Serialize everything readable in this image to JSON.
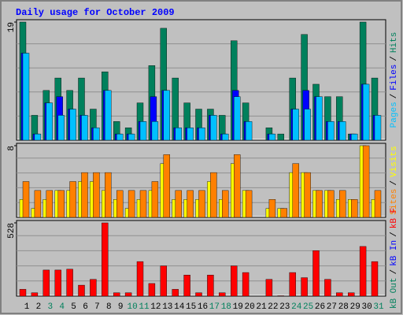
{
  "chart_data": [
    {
      "type": "bar",
      "title": "Daily usage for October 2009",
      "separator": "/",
      "ylim": [
        0,
        19
      ],
      "yticks": [
        19
      ],
      "series": [
        {
          "name": "Hits",
          "color": "#00805c",
          "values": [
            19,
            4,
            8,
            10,
            8,
            10,
            5,
            11,
            3,
            2,
            6,
            12,
            18,
            10,
            6,
            5,
            5,
            4,
            16,
            6,
            0,
            2,
            1,
            10,
            17,
            9,
            7,
            7,
            1,
            19,
            10
          ]
        },
        {
          "name": "Files",
          "color": "#0000ff",
          "values": [
            14,
            1,
            6,
            7,
            5,
            4,
            2,
            8,
            1,
            1,
            3,
            7,
            8,
            2,
            2,
            2,
            4,
            1,
            8,
            3,
            0,
            1,
            0,
            5,
            8,
            7,
            3,
            3,
            1,
            9,
            4
          ]
        },
        {
          "name": "Pages",
          "color": "#00c0ff",
          "values": [
            14,
            1,
            6,
            4,
            5,
            4,
            2,
            8,
            1,
            1,
            3,
            3,
            8,
            2,
            2,
            2,
            4,
            1,
            7,
            3,
            0,
            1,
            0,
            5,
            5,
            7,
            3,
            3,
            1,
            9,
            4
          ]
        }
      ]
    },
    {
      "type": "bar",
      "separator": "/",
      "ylim": [
        0,
        8
      ],
      "yticks": [
        8
      ],
      "series": [
        {
          "name": "Visits",
          "color": "#ffff00",
          "values": [
            2,
            1,
            2,
            3,
            3,
            4,
            4,
            3,
            2,
            1,
            2,
            3,
            6,
            2,
            2,
            2,
            4,
            2,
            6,
            3,
            0,
            1,
            1,
            5,
            5,
            3,
            3,
            2,
            2,
            8,
            2
          ]
        },
        {
          "name": "Sites",
          "color": "#ff8000",
          "values": [
            4,
            3,
            3,
            3,
            4,
            5,
            5,
            5,
            3,
            3,
            3,
            4,
            7,
            3,
            3,
            3,
            5,
            3,
            7,
            3,
            0,
            2,
            1,
            6,
            5,
            3,
            3,
            3,
            2,
            8,
            3
          ]
        }
      ]
    },
    {
      "type": "bar",
      "separator": "/",
      "ylim": [
        0,
        528
      ],
      "yticks": [
        528
      ],
      "categories": [
        "1",
        "2",
        "3",
        "4",
        "5",
        "6",
        "7",
        "8",
        "9",
        "10",
        "11",
        "12",
        "13",
        "14",
        "15",
        "16",
        "17",
        "18",
        "19",
        "20",
        "21",
        "22",
        "23",
        "24",
        "25",
        "26",
        "27",
        "28",
        "29",
        "30",
        "31"
      ],
      "category_colors": [
        "#000000",
        "#000000",
        "#00805c",
        "#00805c",
        "#000000",
        "#000000",
        "#000000",
        "#000000",
        "#000000",
        "#00805c",
        "#00805c",
        "#000000",
        "#000000",
        "#000000",
        "#000000",
        "#000000",
        "#00805c",
        "#00805c",
        "#000000",
        "#000000",
        "#000000",
        "#000000",
        "#000000",
        "#00805c",
        "#00805c",
        "#000000",
        "#000000",
        "#000000",
        "#000000",
        "#000000",
        "#00805c"
      ],
      "series": [
        {
          "name": "kB F",
          "color": "#ff0000",
          "values": [
            49,
            24,
            188,
            188,
            194,
            79,
            121,
            528,
            24,
            24,
            249,
            91,
            218,
            49,
            152,
            24,
            152,
            24,
            218,
            170,
            0,
            121,
            3,
            170,
            133,
            328,
            121,
            24,
            24,
            358,
            249
          ]
        },
        {
          "name": "kB In",
          "color": "#0000ff",
          "values": [
            0,
            0,
            0,
            0,
            0,
            0,
            0,
            0,
            0,
            0,
            0,
            0,
            0,
            0,
            0,
            0,
            0,
            0,
            0,
            0,
            0,
            0,
            0,
            0,
            0,
            0,
            0,
            0,
            0,
            0,
            0
          ]
        },
        {
          "name": "kB Out",
          "color": "#00805c",
          "values": [
            0,
            0,
            0,
            0,
            0,
            0,
            0,
            0,
            0,
            0,
            0,
            0,
            0,
            0,
            0,
            0,
            0,
            0,
            0,
            0,
            0,
            0,
            0,
            0,
            0,
            0,
            0,
            0,
            0,
            0,
            0
          ]
        }
      ]
    }
  ]
}
